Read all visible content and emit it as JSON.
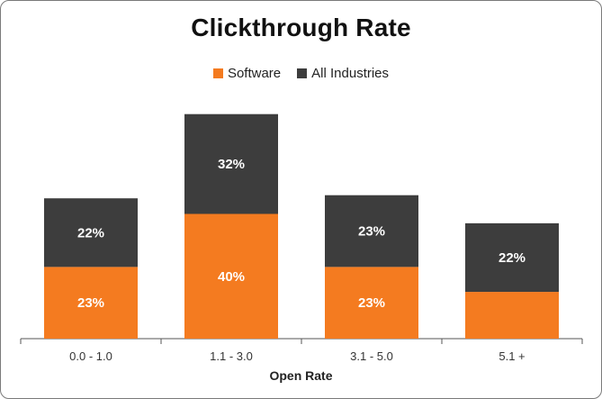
{
  "chart_data": {
    "type": "bar",
    "stacked": true,
    "title": "Clickthrough Rate",
    "xlabel": "Open Rate",
    "ylabel": "",
    "categories": [
      "0.0 - 1.0",
      "1.1 - 3.0",
      "3.1 - 5.0",
      "5.1 +"
    ],
    "series": [
      {
        "name": "Software",
        "color": "#f47b20",
        "values": [
          23,
          40,
          23,
          15
        ],
        "labels": [
          "23%",
          "40%",
          "23%",
          ""
        ]
      },
      {
        "name": "All Industries",
        "color": "#3d3d3d",
        "values": [
          22,
          32,
          23,
          22
        ],
        "labels": [
          "22%",
          "32%",
          "23%",
          "22%"
        ]
      }
    ],
    "ylim": [
      0,
      80
    ],
    "grid": false,
    "legend_position": "top"
  }
}
